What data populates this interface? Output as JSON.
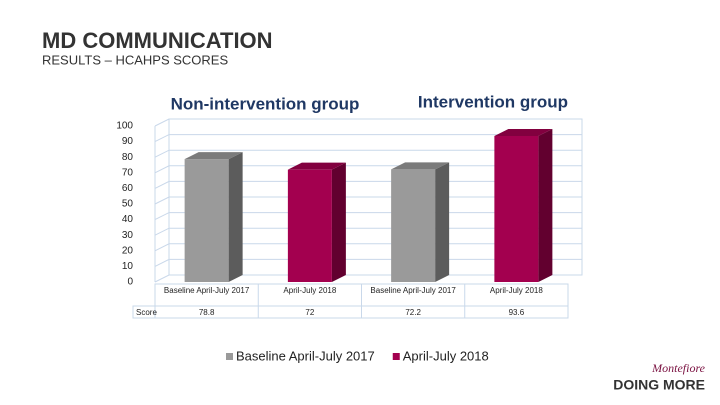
{
  "title": "MD COMMUNICATION",
  "subtitle": "RESULTS – HCAHPS SCORES",
  "logo": {
    "name": "Montefiore",
    "tagline": "DOING MORE"
  },
  "chart_data": {
    "type": "bar",
    "annotations": [
      "Non-intervention group",
      "Intervention group"
    ],
    "categories": [
      "Baseline April-July 2017",
      "April-July 2018",
      "Baseline April-July 2017",
      "April-July 2018"
    ],
    "table_row_label": "Score",
    "series": [
      {
        "name": "Baseline April-July 2017",
        "color": "#9a9a9a",
        "values": [
          78.8,
          null,
          72.2,
          null
        ]
      },
      {
        "name": "April-July 2018",
        "color": "#a3004f",
        "values": [
          null,
          72,
          null,
          93.6
        ]
      }
    ],
    "ylim": [
      0,
      100
    ],
    "yticks": [
      0,
      10,
      20,
      30,
      40,
      50,
      60,
      70,
      80,
      90,
      100
    ],
    "grid": true
  }
}
